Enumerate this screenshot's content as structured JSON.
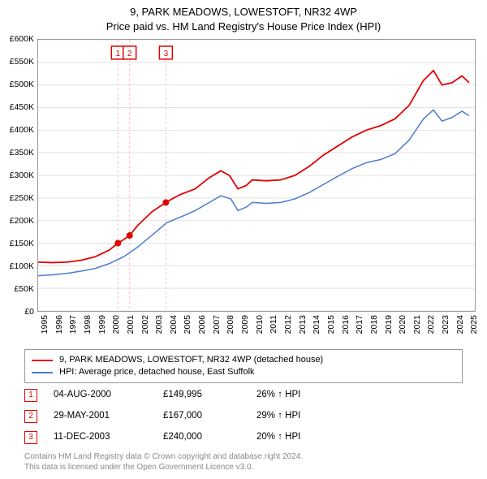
{
  "title": {
    "address": "9, PARK MEADOWS, LOWESTOFT, NR32 4WP",
    "subtitle": "Price paid vs. HM Land Registry's House Price Index (HPI)"
  },
  "chart": {
    "type": "line",
    "background_color": "#ffffff",
    "border_color": "#999999",
    "x_range": [
      1995,
      2025.6
    ],
    "y_range": [
      0,
      600000
    ],
    "y_ticks": [
      0,
      50000,
      100000,
      150000,
      200000,
      250000,
      300000,
      350000,
      400000,
      450000,
      500000,
      550000,
      600000
    ],
    "y_tick_labels": [
      "£0",
      "£50K",
      "£100K",
      "£150K",
      "£200K",
      "£250K",
      "£300K",
      "£350K",
      "£400K",
      "£450K",
      "£500K",
      "£550K",
      "£600K"
    ],
    "x_ticks": [
      1995,
      1996,
      1997,
      1998,
      1999,
      2000,
      2001,
      2002,
      2003,
      2004,
      2005,
      2006,
      2007,
      2008,
      2009,
      2010,
      2011,
      2012,
      2013,
      2014,
      2015,
      2016,
      2017,
      2018,
      2019,
      2020,
      2021,
      2022,
      2023,
      2024,
      2025
    ],
    "gridline_color": "#e2e2e2",
    "label_fontsize": 10.5,
    "title_fontsize": 13,
    "series": [
      {
        "name": "property",
        "label": "9, PARK MEADOWS, LOWESTOFT, NR32 4WP (detached house)",
        "color": "#e20000",
        "line_width": 1.8,
        "points": [
          [
            1995.0,
            108000
          ],
          [
            1996.0,
            107000
          ],
          [
            1997.0,
            108000
          ],
          [
            1998.0,
            112000
          ],
          [
            1999.0,
            120000
          ],
          [
            2000.0,
            135000
          ],
          [
            2000.59,
            149995
          ],
          [
            2001.0,
            158000
          ],
          [
            2001.41,
            167000
          ],
          [
            2002.0,
            190000
          ],
          [
            2003.0,
            220000
          ],
          [
            2003.95,
            240000
          ],
          [
            2004.5,
            250000
          ],
          [
            2005.0,
            258000
          ],
          [
            2006.0,
            270000
          ],
          [
            2007.0,
            295000
          ],
          [
            2007.8,
            310000
          ],
          [
            2008.4,
            300000
          ],
          [
            2009.0,
            270000
          ],
          [
            2009.6,
            278000
          ],
          [
            2010.0,
            290000
          ],
          [
            2011.0,
            288000
          ],
          [
            2012.0,
            290000
          ],
          [
            2013.0,
            300000
          ],
          [
            2014.0,
            320000
          ],
          [
            2015.0,
            345000
          ],
          [
            2016.0,
            365000
          ],
          [
            2017.0,
            385000
          ],
          [
            2018.0,
            400000
          ],
          [
            2019.0,
            410000
          ],
          [
            2020.0,
            425000
          ],
          [
            2021.0,
            455000
          ],
          [
            2022.0,
            510000
          ],
          [
            2022.7,
            532000
          ],
          [
            2023.3,
            500000
          ],
          [
            2024.0,
            505000
          ],
          [
            2024.7,
            520000
          ],
          [
            2025.2,
            505000
          ]
        ]
      },
      {
        "name": "hpi",
        "label": "HPI: Average price, detached house, East Suffolk",
        "color": "#4a7bd0",
        "line_width": 1.5,
        "points": [
          [
            1995.0,
            78000
          ],
          [
            1996.0,
            80000
          ],
          [
            1997.0,
            83000
          ],
          [
            1998.0,
            88000
          ],
          [
            1999.0,
            94000
          ],
          [
            2000.0,
            105000
          ],
          [
            2001.0,
            120000
          ],
          [
            2002.0,
            142000
          ],
          [
            2003.0,
            168000
          ],
          [
            2004.0,
            195000
          ],
          [
            2005.0,
            208000
          ],
          [
            2006.0,
            222000
          ],
          [
            2007.0,
            240000
          ],
          [
            2007.8,
            255000
          ],
          [
            2008.5,
            248000
          ],
          [
            2009.0,
            222000
          ],
          [
            2009.6,
            230000
          ],
          [
            2010.0,
            240000
          ],
          [
            2011.0,
            238000
          ],
          [
            2012.0,
            240000
          ],
          [
            2013.0,
            248000
          ],
          [
            2014.0,
            262000
          ],
          [
            2015.0,
            280000
          ],
          [
            2016.0,
            298000
          ],
          [
            2017.0,
            315000
          ],
          [
            2018.0,
            328000
          ],
          [
            2019.0,
            335000
          ],
          [
            2020.0,
            348000
          ],
          [
            2021.0,
            378000
          ],
          [
            2022.0,
            425000
          ],
          [
            2022.7,
            445000
          ],
          [
            2023.3,
            420000
          ],
          [
            2024.0,
            428000
          ],
          [
            2024.7,
            442000
          ],
          [
            2025.2,
            432000
          ]
        ]
      }
    ],
    "sale_markers": [
      {
        "n": "1",
        "x": 2000.59,
        "y": 149995
      },
      {
        "n": "2",
        "x": 2001.41,
        "y": 167000
      },
      {
        "n": "3",
        "x": 2003.95,
        "y": 240000
      }
    ],
    "marker_fill": "#e20000",
    "marker_radius": 4,
    "badge_top_y": 66000,
    "vertical_line_color": "#f6bcbc",
    "vertical_line_dash": "3,3"
  },
  "legend": {
    "items": [
      {
        "color": "#e20000",
        "label": "9, PARK MEADOWS, LOWESTOFT, NR32 4WP (detached house)"
      },
      {
        "color": "#4a7bd0",
        "label": "HPI: Average price, detached house, East Suffolk"
      }
    ]
  },
  "sales": [
    {
      "n": "1",
      "date": "04-AUG-2000",
      "price": "£149,995",
      "diff": "26% ↑ HPI",
      "color": "#e20000"
    },
    {
      "n": "2",
      "date": "29-MAY-2001",
      "price": "£167,000",
      "diff": "29% ↑ HPI",
      "color": "#e20000"
    },
    {
      "n": "3",
      "date": "11-DEC-2003",
      "price": "£240,000",
      "diff": "20% ↑ HPI",
      "color": "#e20000"
    }
  ],
  "license": {
    "line1": "Contains HM Land Registry data © Crown copyright and database right 2024.",
    "line2": "This data is licensed under the Open Government Licence v3.0.",
    "color": "#888888",
    "fontsize": 10
  }
}
